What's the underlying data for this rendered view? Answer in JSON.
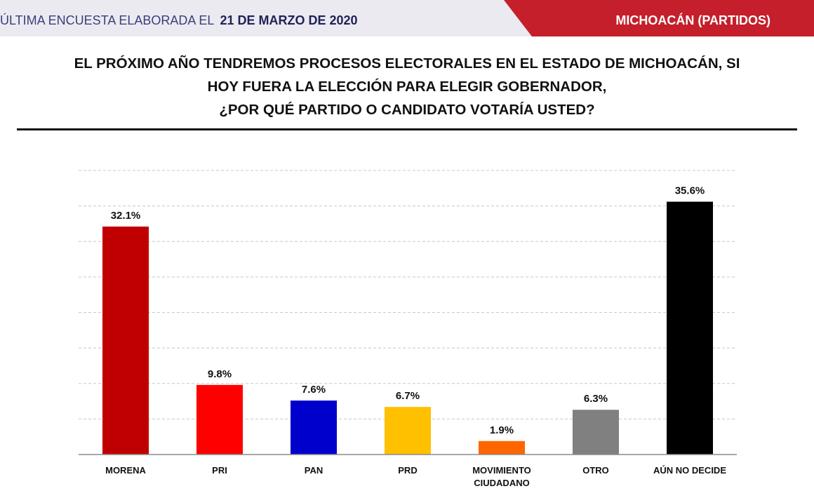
{
  "header": {
    "survey_label": "ÚLTIMA ENCUESTA ELABORADA EL",
    "survey_date": "21 DE MARZO DE 2020",
    "region": "MICHOACÁN (PARTIDOS)"
  },
  "question": {
    "line1": "EL PRÓXIMO AÑO TENDREMOS PROCESOS ELECTORALES EN EL ESTADO DE MICHOACÁN, SI",
    "line2": "HOY FUERA LA ELECCIÓN PARA ELEGIR GOBERNADOR,",
    "line3": "¿POR QUÉ PARTIDO O CANDIDATO VOTARÍA USTED?"
  },
  "colors": {
    "header_right_bg": "#c41f2a",
    "header_left_bg": "#eceaf1",
    "bars": [
      "#c00000",
      "#ff0000",
      "#0000cc",
      "#ffc000",
      "#ff6600",
      "#808080",
      "#000000"
    ]
  },
  "chart_data": {
    "type": "bar",
    "categories": [
      [
        "MORENA"
      ],
      [
        "PRI"
      ],
      [
        "PAN"
      ],
      [
        "PRD"
      ],
      [
        "MOVIMIENTO",
        "CIUDADANO"
      ],
      [
        "OTRO"
      ],
      [
        "AÚN NO DECIDE"
      ]
    ],
    "values": [
      32.1,
      9.8,
      7.6,
      6.7,
      1.9,
      6.3,
      35.6
    ],
    "data_labels": [
      "32.1%",
      "9.8%",
      "7.6%",
      "6.7%",
      "1.9%",
      "6.3%",
      "35.6%"
    ],
    "ylim": [
      0,
      40
    ],
    "grid": true
  }
}
